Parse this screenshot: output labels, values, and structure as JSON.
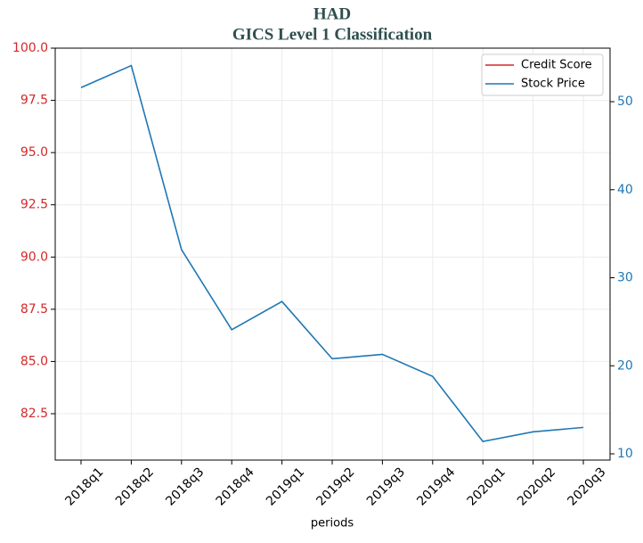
{
  "chart_data": {
    "type": "line",
    "title": "HAD",
    "subtitle": "GICS Level 1 Classification",
    "xlabel": "periods",
    "categories": [
      "2018q1",
      "2018q2",
      "2018q3",
      "2018q4",
      "2019q1",
      "2019q2",
      "2019q3",
      "2019q4",
      "2020q1",
      "2020q2",
      "2020q3"
    ],
    "series": [
      {
        "name": "Credit Score",
        "color": "#d62728",
        "values": [
          null,
          null,
          null,
          null,
          null,
          null,
          null,
          null,
          null,
          null,
          null
        ]
      },
      {
        "name": "Stock Price",
        "color": "#1f77b4",
        "axis": "y2",
        "values": [
          51.6,
          54.1,
          33.2,
          24.1,
          27.3,
          20.8,
          21.3,
          18.8,
          11.4,
          12.5,
          13.0
        ]
      }
    ],
    "ylim": [
      80.28,
      100
    ],
    "yticks": [
      82.5,
      {
        "value": 85,
        "label": "85.0"
      },
      87.5,
      {
        "value": 90,
        "label": "90.0"
      },
      92.5,
      {
        "value": 95,
        "label": "95.0"
      },
      97.5,
      {
        "value": 100,
        "label": "100.0"
      }
    ],
    "y2lim": [
      9.29,
      56.08
    ],
    "y2ticks": [
      10,
      20,
      30,
      40,
      50
    ],
    "grid": true,
    "legend": "upper right"
  }
}
